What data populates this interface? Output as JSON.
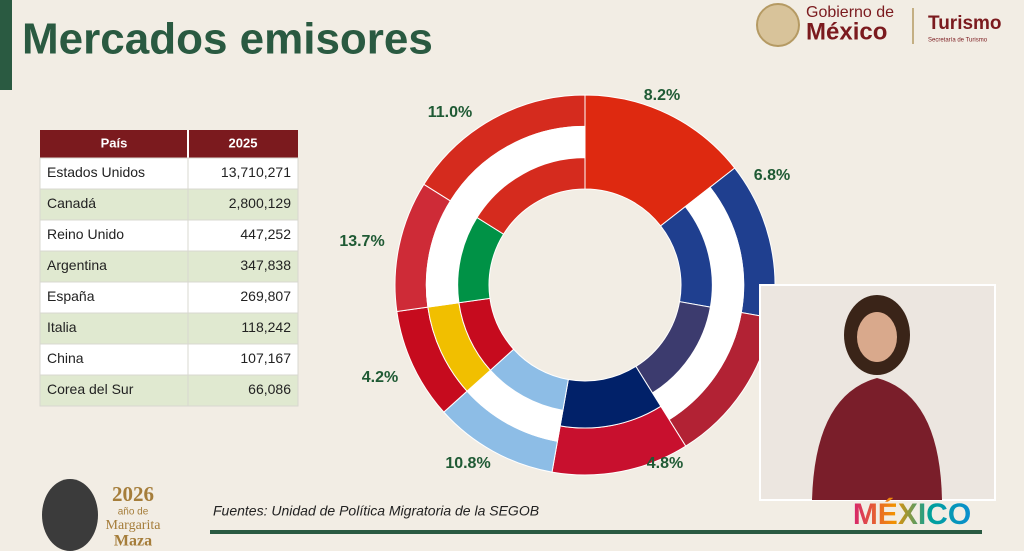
{
  "header": {
    "title": "Mercados emisores",
    "logo": {
      "gobierno": "Gobierno de",
      "mexico": "México",
      "turismo": "Turismo",
      "secretaria": "Secretaría de Turismo"
    }
  },
  "table": {
    "columns": [
      "País",
      "2025"
    ],
    "rows": [
      [
        "Estados Unidos",
        "13,710,271"
      ],
      [
        "Canadá",
        "2,800,129"
      ],
      [
        "Reino Unido",
        "447,252"
      ],
      [
        "Argentina",
        "347,838"
      ],
      [
        "España",
        "269,807"
      ],
      [
        "Italia",
        "118,242"
      ],
      [
        "China",
        "107,167"
      ],
      [
        "Corea del Sur",
        "66,086"
      ]
    ]
  },
  "donut": {
    "labels": [
      "8.2%",
      "6.8%",
      "4.8%",
      "10.8%",
      "4.2%",
      "13.7%",
      "11.0%"
    ]
  },
  "footer": {
    "source": "Fuentes: Unidad de Política Migratoria de la SEGOB",
    "commemoration": {
      "year": "2026",
      "text": "año de",
      "name1": "Margarita",
      "name2": "Maza"
    },
    "brand": "MÉXICO"
  }
}
